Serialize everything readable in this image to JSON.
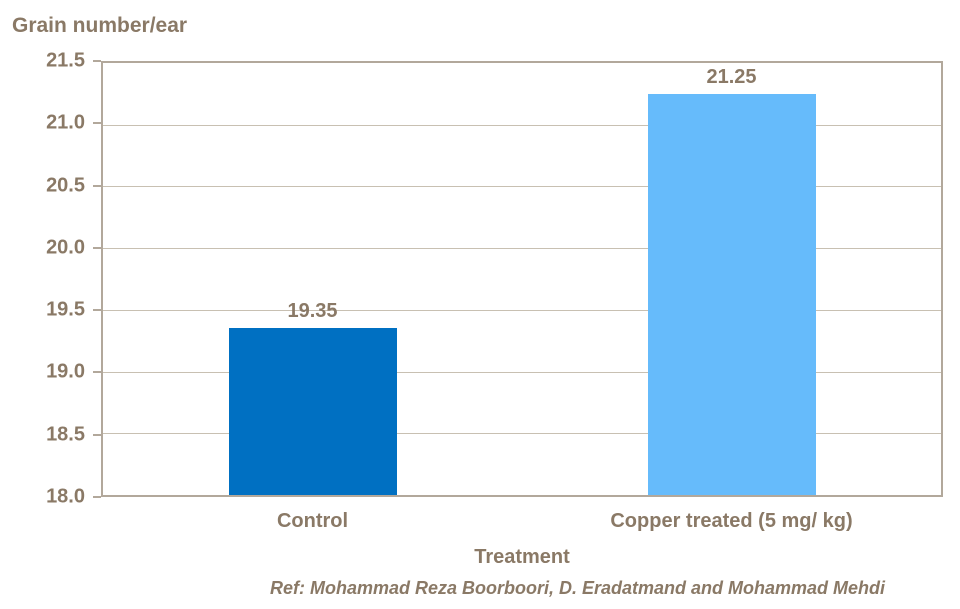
{
  "chart_data": {
    "type": "bar",
    "title": "Grain number/ear",
    "xlabel": "Treatment",
    "ylabel": "Grain number/ear",
    "categories": [
      "Control",
      "Copper treated (5 mg/ kg)"
    ],
    "values": [
      19.35,
      21.25
    ],
    "data_labels": [
      "19.35",
      "21.25"
    ],
    "bar_colors": [
      "#0070C2",
      "#66BBFB"
    ],
    "ylim": [
      18.0,
      21.5
    ],
    "ytick_step": 0.5,
    "ytick_labels": [
      "21.5",
      "21.0",
      "20.5",
      "20.0",
      "19.5",
      "19.0",
      "18.5",
      "18.0"
    ],
    "grid": "horizontal",
    "legend": "none",
    "reference": "Ref: Mohammad Reza Boorboori, D. Eradatmand and Mohammad Mehdi",
    "colors": {
      "text": "#8a7966",
      "axis": "#b2a89b",
      "gridline": "#c8c0b2",
      "background": "#ffffff"
    }
  }
}
